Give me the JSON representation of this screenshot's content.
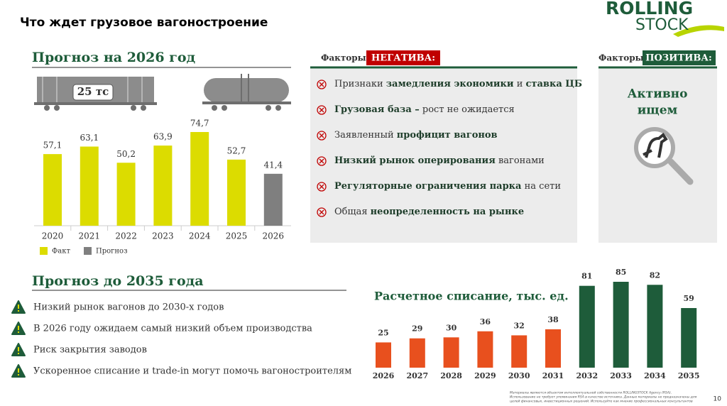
{
  "header": {
    "title": "Что ждет грузовое вагоностроение",
    "logo_top": "ROLLING",
    "logo_bottom": "STOCK"
  },
  "chart_data": [
    {
      "type": "bar",
      "title": "Прогноз на 2026 год",
      "capacity_label": "25 тс",
      "categories": [
        "2020",
        "2021",
        "2022",
        "2023",
        "2024",
        "2025",
        "2026"
      ],
      "series": [
        {
          "name": "Факт",
          "color": "#dcdc00",
          "values": [
            57.1,
            63.1,
            50.2,
            63.9,
            74.7,
            52.7,
            null
          ],
          "value_labels": [
            "57,1",
            "63,1",
            "50,2",
            "63,9",
            "74,7",
            "52,7",
            null
          ]
        },
        {
          "name": "Прогноз",
          "color": "#7f7f7f",
          "values": [
            null,
            null,
            null,
            null,
            null,
            null,
            41.4
          ],
          "value_labels": [
            null,
            null,
            null,
            null,
            null,
            null,
            "41,4"
          ]
        }
      ]
    },
    {
      "type": "bar",
      "title": "Расчетное списание, тыс. ед.",
      "categories": [
        "2026",
        "2027",
        "2028",
        "2029",
        "2030",
        "2031",
        "2032",
        "2033",
        "2034",
        "2035"
      ],
      "values": [
        25,
        29,
        30,
        36,
        32,
        38,
        81,
        85,
        82,
        59
      ],
      "colors": [
        "#e8501e",
        "#e8501e",
        "#e8501e",
        "#e8501e",
        "#e8501e",
        "#e8501e",
        "#1e5c3a",
        "#1e5c3a",
        "#1e5c3a",
        "#1e5c3a"
      ]
    }
  ],
  "negative": {
    "label": "Факторы",
    "tag": "НЕГАТИВА:",
    "items": [
      [
        {
          "text": "Признаки ",
          "bold": false
        },
        {
          "text": "замедления экономики",
          "bold": true
        },
        {
          "text": " и ",
          "bold": false
        },
        {
          "text": "ставка ЦБ",
          "bold": true
        }
      ],
      [
        {
          "text": "Грузовая база –",
          "bold": true
        },
        {
          "text": " рост не ожидается",
          "bold": false
        }
      ],
      [
        {
          "text": "Заявленный ",
          "bold": false
        },
        {
          "text": "профицит вагонов",
          "bold": true
        }
      ],
      [
        {
          "text": "Низкий рынок оперирования",
          "bold": true
        },
        {
          "text": " вагонами",
          "bold": false
        }
      ],
      [
        {
          "text": "Регуляторные ограничения парка",
          "bold": true
        },
        {
          "text": " на сети",
          "bold": false
        }
      ],
      [
        {
          "text": "Общая ",
          "bold": false
        },
        {
          "text": "неопределенность на рынке",
          "bold": true
        }
      ]
    ]
  },
  "positive": {
    "label": "Факторы",
    "tag": "ПОЗИТИВА:",
    "text_lines": [
      "Активно",
      "ищем"
    ]
  },
  "outlook": {
    "title": "Прогноз до 2035 года",
    "items": [
      "Низкий рынок вагонов до 2030-х годов",
      "В 2026 году ожидаем самый низкий объем производства",
      "Риск закрытия заводов",
      "Ускоренное списание и trade-in могут помочь вагоностроителям"
    ]
  },
  "footnote": [
    "Материалы являются объектом интеллектуальной собственности ROLLINGSTOCK Agency (RSA).",
    "Использование не требует упоминания RSA в качестве источника. Данные материалы не предназначены для",
    "целей финансовых, инвестиционных решений. Используйте как мнение профессиональных консультантов"
  ],
  "page_number": "10"
}
